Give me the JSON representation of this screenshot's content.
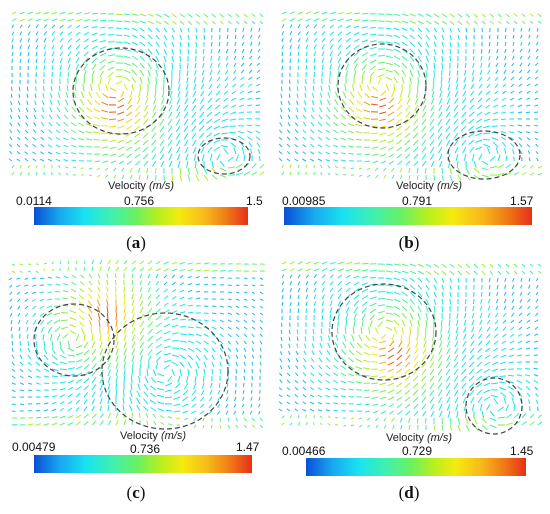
{
  "panels": [
    {
      "id": "a",
      "velocity_label": "Velocity",
      "velocity_unit": "(m/s)",
      "min": "0.0114",
      "mid": "0.756",
      "max": "1.5",
      "caption_letter": "a"
    },
    {
      "id": "b",
      "velocity_label": "Velocity",
      "velocity_unit": "(m/s)",
      "min": "0.00985",
      "mid": "0.791",
      "max": "1.57",
      "caption_letter": "b"
    },
    {
      "id": "c",
      "velocity_label": "Velocity",
      "velocity_unit": "(m/s)",
      "min": "0.00479",
      "mid": "0.736",
      "max": "1.47",
      "caption_letter": "c"
    },
    {
      "id": "d",
      "velocity_label": "Velocity",
      "velocity_unit": "(m/s)",
      "min": "0.00466",
      "mid": "0.729",
      "max": "1.45",
      "caption_letter": "d"
    }
  ],
  "caption_open": "(",
  "caption_close": ")"
}
